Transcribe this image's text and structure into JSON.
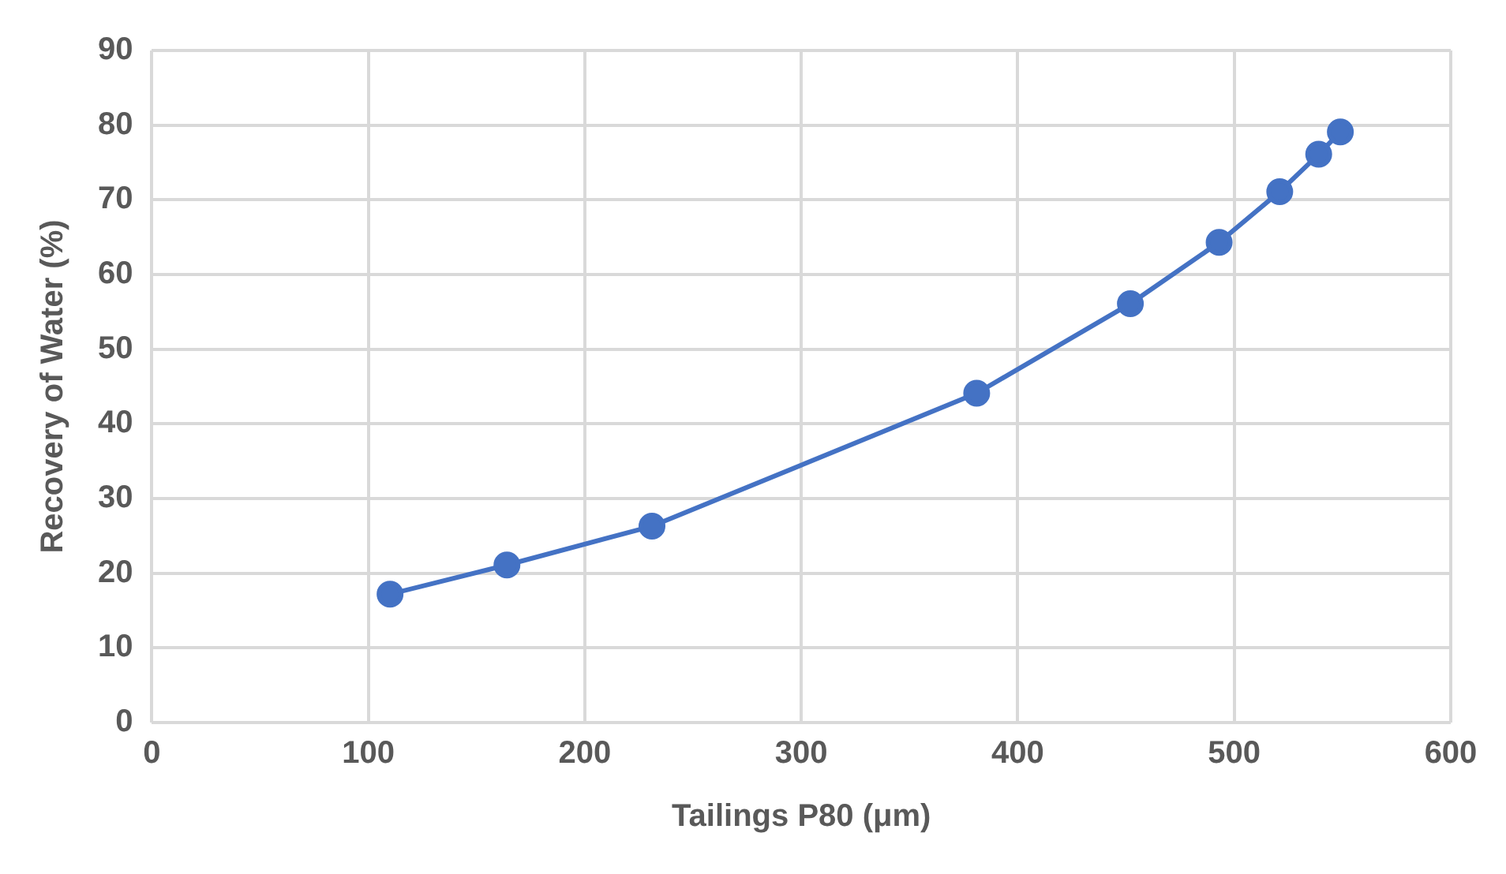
{
  "chart_data": {
    "type": "line",
    "xlabel": "Tailings P80 (μm)",
    "ylabel": "Recovery of Water (%)",
    "x": [
      110,
      164,
      231,
      381,
      452,
      493,
      521,
      539,
      549
    ],
    "series": [
      {
        "color": "#4472c4",
        "values": [
          17.2,
          21.1,
          26.3,
          44.1,
          56.1,
          64.3,
          71.1,
          76.1,
          79.1
        ]
      }
    ],
    "xlim": [
      0,
      600
    ],
    "xticks": [
      0,
      100,
      200,
      300,
      400,
      500,
      600
    ],
    "ylim": [
      0,
      90
    ],
    "yticks": [
      0,
      10,
      20,
      30,
      40,
      50,
      60,
      70,
      80,
      90
    ],
    "grid": true,
    "marker": "circle",
    "line_style": "solid"
  }
}
